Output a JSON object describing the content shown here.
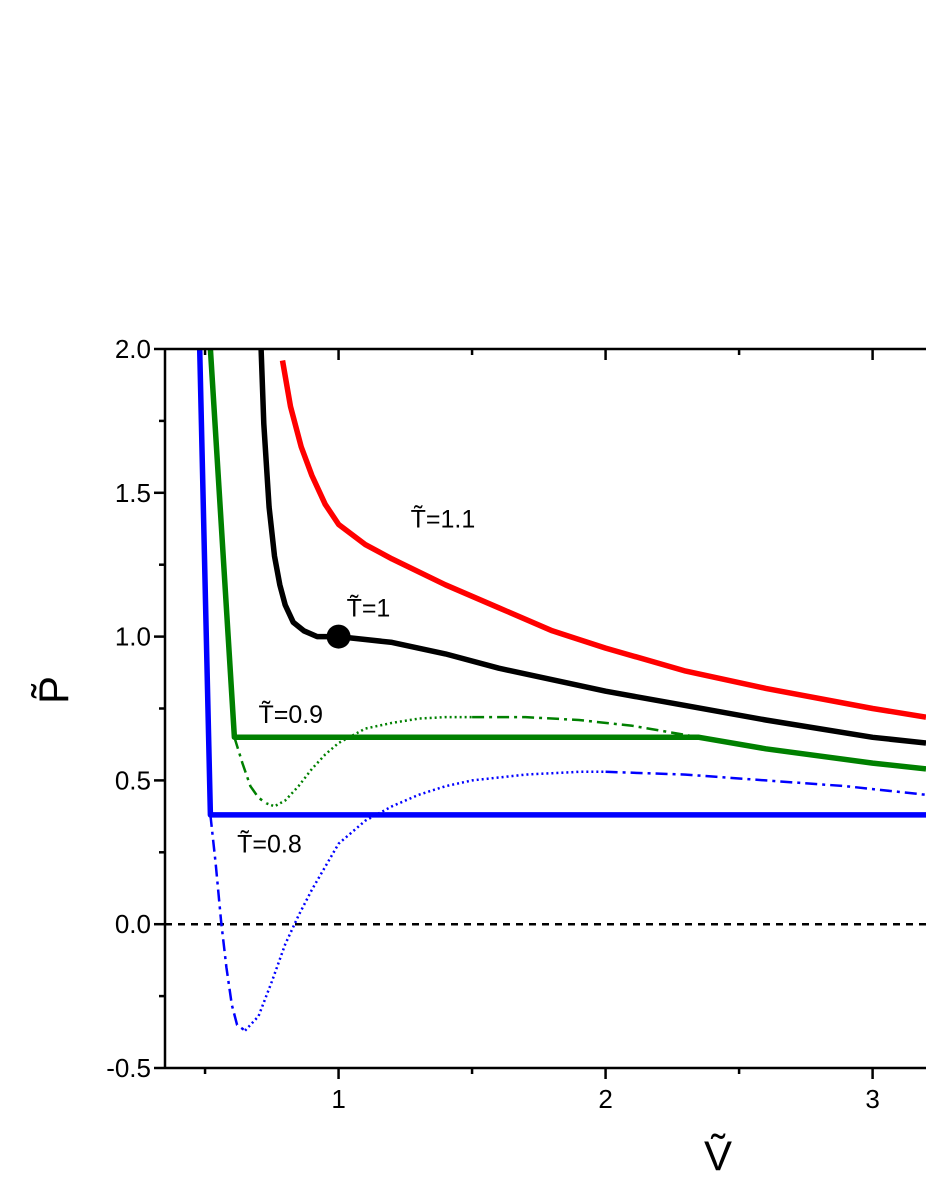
{
  "chart_data": {
    "type": "line",
    "title": "",
    "xlabel": "Ṽ",
    "ylabel": "P̃",
    "xlim": [
      0.35,
      3.2
    ],
    "ylim": [
      -0.5,
      2.0
    ],
    "x_ticks": [
      {
        "value": 1,
        "label": "1"
      },
      {
        "value": 2,
        "label": "2"
      },
      {
        "value": 3,
        "label": "3"
      }
    ],
    "y_ticks": [
      {
        "value": -0.5,
        "label": "-0.5"
      },
      {
        "value": 0.0,
        "label": "0.0"
      },
      {
        "value": 0.5,
        "label": "0.5"
      },
      {
        "value": 1.0,
        "label": "1.0"
      },
      {
        "value": 1.5,
        "label": "1.5"
      },
      {
        "value": 2.0,
        "label": "2.0"
      }
    ],
    "grid": false,
    "zero_line": {
      "y": 0,
      "style": "dashed",
      "color": "#000000"
    },
    "series": [
      {
        "color": "#ff0000",
        "style": "solid",
        "kind": "isotherm",
        "T": 1.1,
        "x": [
          0.79,
          0.82,
          0.86,
          0.9,
          0.95,
          1.0,
          1.1,
          1.2,
          1.4,
          1.6,
          1.8,
          2.0,
          2.3,
          2.6,
          3.0,
          3.2
        ],
        "y": [
          1.96,
          1.8,
          1.66,
          1.56,
          1.46,
          1.39,
          1.32,
          1.27,
          1.18,
          1.1,
          1.02,
          0.96,
          0.88,
          0.82,
          0.75,
          0.72
        ]
      },
      {
        "color": "#000000",
        "style": "solid",
        "kind": "isotherm",
        "T": 1.0,
        "x": [
          0.71,
          0.72,
          0.74,
          0.76,
          0.78,
          0.8,
          0.83,
          0.87,
          0.92,
          1.0,
          1.1,
          1.2,
          1.4,
          1.6,
          1.8,
          2.0,
          2.3,
          2.6,
          3.0,
          3.2
        ],
        "y": [
          2.0,
          1.74,
          1.45,
          1.28,
          1.18,
          1.11,
          1.05,
          1.02,
          1.0,
          1.0,
          0.99,
          0.98,
          0.94,
          0.89,
          0.85,
          0.81,
          0.76,
          0.71,
          0.65,
          0.63
        ]
      },
      {
        "color": "#008000",
        "style": "solid",
        "kind": "isotherm",
        "T": 0.9,
        "x": [
          0.52,
          0.61,
          2.35,
          2.6,
          3.0,
          3.2
        ],
        "y": [
          2.0,
          0.65,
          0.65,
          0.61,
          0.56,
          0.54
        ]
      },
      {
        "color": "#008000",
        "style": "dotted",
        "kind": "unstable",
        "T": 0.9,
        "x": [
          0.73,
          0.76,
          0.8,
          0.85,
          0.9,
          0.95,
          1.0,
          1.1,
          1.2,
          1.3,
          1.4,
          1.5
        ],
        "y": [
          0.42,
          0.41,
          0.43,
          0.48,
          0.54,
          0.59,
          0.63,
          0.68,
          0.7,
          0.715,
          0.72,
          0.72
        ]
      },
      {
        "color": "#008000",
        "style": "dashdot",
        "kind": "metastable",
        "T": 0.9,
        "x": [
          0.61,
          0.64,
          0.67,
          0.7,
          0.73
        ],
        "y": [
          0.65,
          0.56,
          0.48,
          0.44,
          0.42
        ]
      },
      {
        "color": "#008000",
        "style": "dashdot",
        "kind": "metastable",
        "T": 0.9,
        "x": [
          1.5,
          1.7,
          1.9,
          2.1,
          2.35
        ],
        "y": [
          0.72,
          0.72,
          0.71,
          0.69,
          0.65
        ]
      },
      {
        "color": "#0000ff",
        "style": "solid",
        "kind": "isotherm",
        "T": 0.8,
        "x": [
          0.48,
          0.52,
          3.2
        ],
        "y": [
          2.0,
          0.38,
          0.38
        ]
      },
      {
        "color": "#0000ff",
        "style": "dashdot",
        "kind": "metastable",
        "T": 0.8,
        "x": [
          0.52,
          0.54,
          0.56,
          0.58,
          0.6,
          0.62,
          0.65
        ],
        "y": [
          0.38,
          0.21,
          0.01,
          -0.15,
          -0.28,
          -0.35,
          -0.37
        ]
      },
      {
        "color": "#0000ff",
        "style": "dotted",
        "kind": "unstable",
        "T": 0.8,
        "x": [
          0.65,
          0.7,
          0.75,
          0.8,
          0.85,
          0.9,
          1.0,
          1.1,
          1.2,
          1.3,
          1.4,
          1.5,
          1.6,
          1.7,
          1.8,
          1.9,
          2.0
        ],
        "y": [
          -0.37,
          -0.32,
          -0.2,
          -0.07,
          0.03,
          0.12,
          0.28,
          0.36,
          0.41,
          0.45,
          0.48,
          0.5,
          0.51,
          0.52,
          0.525,
          0.53,
          0.53
        ]
      },
      {
        "color": "#0000ff",
        "style": "dashdot",
        "kind": "metastable",
        "T": 0.8,
        "x": [
          2.0,
          2.3,
          2.6,
          2.9,
          3.2
        ],
        "y": [
          0.53,
          0.52,
          0.5,
          0.48,
          0.45
        ]
      }
    ],
    "critical_point": {
      "x": 1.0,
      "y": 1.0,
      "color": "#000000"
    },
    "annotations": [
      {
        "text": "T̃=1.1",
        "x": 1.27,
        "y": 1.38
      },
      {
        "text": "T̃=1",
        "x": 1.03,
        "y": 1.07
      },
      {
        "text": "T̃=0.9",
        "x": 0.7,
        "y": 0.7
      },
      {
        "text": "T̃=0.8",
        "x": 0.62,
        "y": 0.25
      }
    ]
  }
}
